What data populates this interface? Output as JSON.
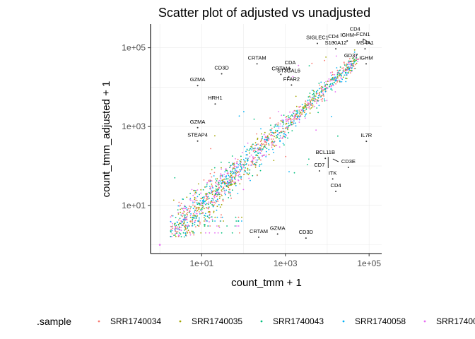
{
  "chart_data": {
    "type": "scatter",
    "title": "Scatter plot of adjusted vs unadjusted",
    "xlabel": "count_tmm + 1",
    "ylabel": "count_tmm_adjusted + 1",
    "x_scale": "log10",
    "y_scale": "log10",
    "xlim": [
      0.6,
      200000
    ],
    "ylim": [
      0.6,
      400000
    ],
    "x_ticks": [
      {
        "value": 10,
        "label": "1e+01"
      },
      {
        "value": 1000,
        "label": "1e+03"
      },
      {
        "value": 100000,
        "label": "1e+05"
      }
    ],
    "y_ticks": [
      {
        "value": 10,
        "label": "1e+01"
      },
      {
        "value": 1000,
        "label": "1e+03"
      },
      {
        "value": 100000,
        "label": "1e+05"
      }
    ],
    "grid": true,
    "legend": {
      "title": ".sample",
      "position": "bottom",
      "entries": [
        "SRR1740034",
        "SRR1740035",
        "SRR1740043",
        "SRR1740058",
        "SRR17400"
      ]
    },
    "series_colors": [
      "#F8766D",
      "#A3A500",
      "#00BF7D",
      "#00B0F6",
      "#E76BF3"
    ],
    "annotations": [
      {
        "label": "CD4",
        "x": 46000,
        "y": 270000
      },
      {
        "label": "FCN1",
        "x": 72000,
        "y": 200000
      },
      {
        "label": "IGHM",
        "x": 30000,
        "y": 190000
      },
      {
        "label": "CD4",
        "x": 14000,
        "y": 175000
      },
      {
        "label": "SIGLEC1",
        "x": 5800,
        "y": 165000
      },
      {
        "label": "MS4A1",
        "x": 80000,
        "y": 120000
      },
      {
        "label": "S100A12",
        "x": 16000,
        "y": 120000
      },
      {
        "label": "GD37",
        "x": 37000,
        "y": 58000
      },
      {
        "label": "IGHM",
        "x": 85000,
        "y": 50000
      },
      {
        "label": "CRTAM",
        "x": 210,
        "y": 50000
      },
      {
        "label": "CDA",
        "x": 1300,
        "y": 38000
      },
      {
        "label": "CD3D",
        "x": 30,
        "y": 28000
      },
      {
        "label": "CRTAM",
        "x": 780,
        "y": 27000
      },
      {
        "label": "ST3GAL6",
        "x": 1200,
        "y": 23500
      },
      {
        "label": "GZMA",
        "x": 8,
        "y": 14000
      },
      {
        "label": "FFAR2",
        "x": 1400,
        "y": 14500
      },
      {
        "label": "HRH1",
        "x": 21,
        "y": 4800
      },
      {
        "label": "GZMA",
        "x": 8,
        "y": 1200
      },
      {
        "label": "IL7R",
        "x": 86000,
        "y": 540
      },
      {
        "label": "STEAP4",
        "x": 8,
        "y": 550
      },
      {
        "label": "BCL11B",
        "x": 9000,
        "y": 200
      },
      {
        "label": "CD3E",
        "x": 32000,
        "y": 118
      },
      {
        "label": "CD7",
        "x": 6500,
        "y": 96
      },
      {
        "label": "ITK",
        "x": 13500,
        "y": 60
      },
      {
        "label": "CD4",
        "x": 16000,
        "y": 29
      },
      {
        "label": "GZMA",
        "x": 650,
        "y": 2.4
      },
      {
        "label": "CRTAM",
        "x": 230,
        "y": 2.0
      },
      {
        "label": "CD3D",
        "x": 3100,
        "y": 1.9
      }
    ]
  }
}
